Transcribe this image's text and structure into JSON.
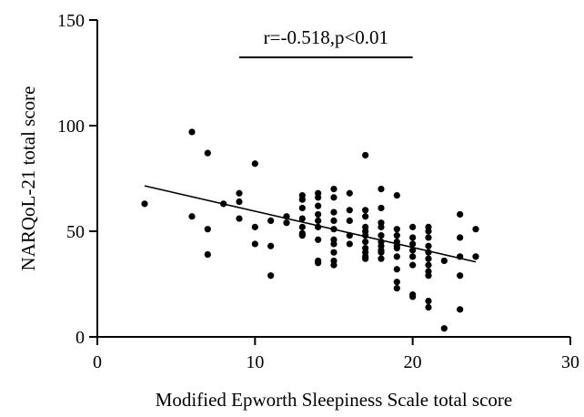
{
  "chart_data": {
    "type": "scatter",
    "xlabel": "Modified Epworth Sleepiness Scale total score",
    "ylabel": "NARQoL-21 total score",
    "xlim": [
      0,
      30
    ],
    "ylim": [
      0,
      150
    ],
    "x_ticks": [
      "0",
      "10",
      "20",
      "30"
    ],
    "y_ticks": [
      "0",
      "50",
      "100",
      "150"
    ],
    "annotation": "r=-0.518,p<0.01",
    "annotation_bar_x": [
      9,
      20
    ],
    "grid": false,
    "point_color": "#000000",
    "regression_line": {
      "x": [
        3,
        24
      ],
      "y": [
        71.5,
        35.5
      ]
    },
    "points": [
      [
        3,
        63
      ],
      [
        6,
        97
      ],
      [
        6,
        57
      ],
      [
        7,
        87
      ],
      [
        7,
        51
      ],
      [
        7,
        39
      ],
      [
        8,
        63
      ],
      [
        9,
        68
      ],
      [
        9,
        64
      ],
      [
        9,
        56
      ],
      [
        10,
        82
      ],
      [
        10,
        52
      ],
      [
        10,
        44
      ],
      [
        11,
        55
      ],
      [
        11,
        43
      ],
      [
        11,
        29
      ],
      [
        12,
        57
      ],
      [
        12,
        54
      ],
      [
        13,
        67
      ],
      [
        13,
        65
      ],
      [
        13,
        61
      ],
      [
        13,
        56
      ],
      [
        13,
        52
      ],
      [
        13,
        49
      ],
      [
        13,
        48
      ],
      [
        14,
        68
      ],
      [
        14,
        66
      ],
      [
        14,
        62
      ],
      [
        14,
        58
      ],
      [
        14,
        55
      ],
      [
        14,
        52
      ],
      [
        14,
        46
      ],
      [
        14,
        36
      ],
      [
        14,
        35
      ],
      [
        15,
        70
      ],
      [
        15,
        66
      ],
      [
        15,
        59
      ],
      [
        15,
        55
      ],
      [
        15,
        51
      ],
      [
        15,
        46
      ],
      [
        15,
        44
      ],
      [
        15,
        40
      ],
      [
        15,
        36
      ],
      [
        15,
        34
      ],
      [
        16,
        68
      ],
      [
        16,
        60
      ],
      [
        16,
        55
      ],
      [
        16,
        48
      ],
      [
        16,
        44
      ],
      [
        17,
        86
      ],
      [
        17,
        60
      ],
      [
        17,
        57
      ],
      [
        17,
        52
      ],
      [
        17,
        50
      ],
      [
        17,
        48
      ],
      [
        17,
        45
      ],
      [
        17,
        42
      ],
      [
        17,
        40
      ],
      [
        17,
        38
      ],
      [
        17,
        37
      ],
      [
        18,
        70
      ],
      [
        18,
        61
      ],
      [
        18,
        54
      ],
      [
        18,
        52
      ],
      [
        18,
        48
      ],
      [
        18,
        45
      ],
      [
        18,
        43
      ],
      [
        18,
        41
      ],
      [
        18,
        40
      ],
      [
        18,
        37
      ],
      [
        19,
        67
      ],
      [
        19,
        51
      ],
      [
        19,
        48
      ],
      [
        19,
        45
      ],
      [
        19,
        43
      ],
      [
        19,
        42
      ],
      [
        19,
        38
      ],
      [
        19,
        32
      ],
      [
        19,
        26
      ],
      [
        19,
        23
      ],
      [
        20,
        52
      ],
      [
        20,
        47
      ],
      [
        20,
        44
      ],
      [
        20,
        41
      ],
      [
        20,
        38
      ],
      [
        20,
        34
      ],
      [
        20,
        20
      ],
      [
        20,
        19
      ],
      [
        21,
        52
      ],
      [
        21,
        50
      ],
      [
        21,
        47
      ],
      [
        21,
        43
      ],
      [
        21,
        40
      ],
      [
        21,
        37
      ],
      [
        21,
        34
      ],
      [
        21,
        31
      ],
      [
        21,
        29
      ],
      [
        21,
        17
      ],
      [
        21,
        14
      ],
      [
        22,
        36
      ],
      [
        22,
        4
      ],
      [
        23,
        58
      ],
      [
        23,
        47
      ],
      [
        23,
        38
      ],
      [
        23,
        29
      ],
      [
        23,
        13
      ],
      [
        24,
        51
      ],
      [
        24,
        38
      ]
    ]
  }
}
